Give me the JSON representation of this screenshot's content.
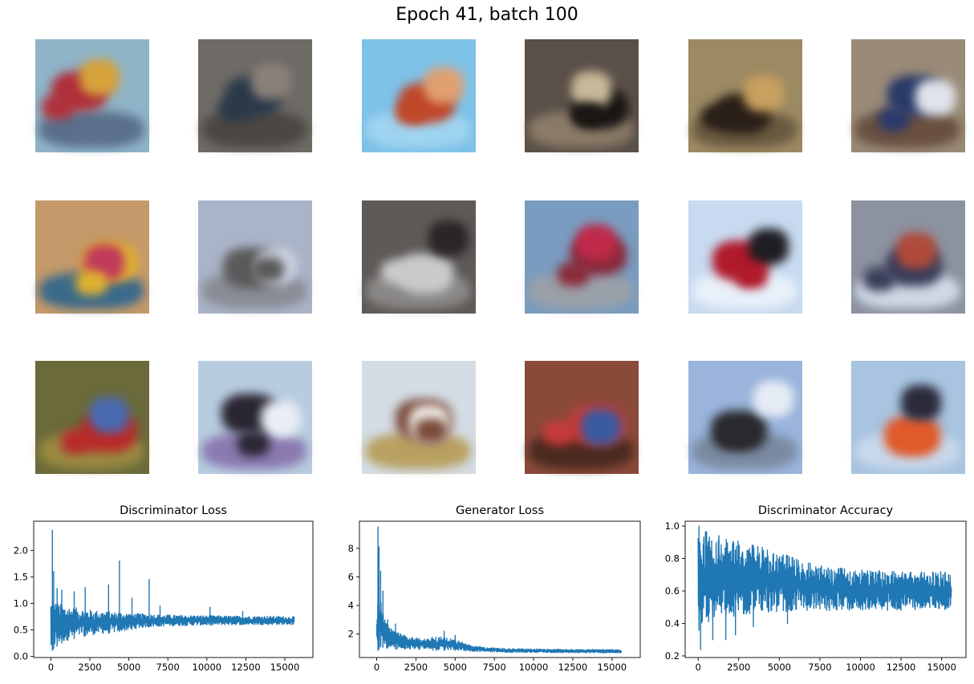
{
  "figure": {
    "title": "Epoch 41, batch 100"
  },
  "sample_grid": {
    "rows": 3,
    "cols": 6,
    "tiles": [
      {
        "bg": "#8fb4c8",
        "a": "#b0303a",
        "b": "#d6a23a",
        "c": "#5a6f8a"
      },
      {
        "bg": "#6e6a66",
        "a": "#2b3a4a",
        "b": "#8a8178",
        "c": "#4c4742"
      },
      {
        "bg": "#7ec2e8",
        "a": "#c0482a",
        "b": "#e0a070",
        "c": "#9fd4f0"
      },
      {
        "bg": "#5a5048",
        "a": "#1a1614",
        "b": "#c8b89a",
        "c": "#8a7a66"
      },
      {
        "bg": "#9c8a62",
        "a": "#2a2018",
        "b": "#c8a060",
        "c": "#6a5a40"
      },
      {
        "bg": "#9a8a78",
        "a": "#2a3a6a",
        "b": "#e0e4ea",
        "c": "#6a5040"
      },
      {
        "bg": "#c49a6a",
        "a": "#e0b030",
        "b": "#c03a5a",
        "c": "#3a6a8a"
      },
      {
        "bg": "#aab4c8",
        "a": "#5a5a5a",
        "b": "#cfd4e2",
        "c": "#8a8c96"
      },
      {
        "bg": "#5e5a58",
        "a": "#c8cacc",
        "b": "#2a2626",
        "c": "#8a8886"
      },
      {
        "bg": "#7a9cc0",
        "a": "#8a2a3a",
        "b": "#c02a4a",
        "c": "#9aa0a8"
      },
      {
        "bg": "#c8daf0",
        "a": "#b01a2a",
        "b": "#1e1e22",
        "c": "#e8f0fa"
      },
      {
        "bg": "#8c92a0",
        "a": "#3a3e5a",
        "b": "#b04a3a",
        "c": "#d0d8e4"
      },
      {
        "bg": "#6a6a3a",
        "a": "#b82a2a",
        "b": "#4a6ab0",
        "c": "#9a8a40"
      },
      {
        "bg": "#b8cce0",
        "a": "#2a2632",
        "b": "#e8eef4",
        "c": "#8a7ab0"
      },
      {
        "bg": "#d4dce4",
        "a": "#7a4a3a",
        "b": "#f0eee8",
        "c": "#b8a060"
      },
      {
        "bg": "#8a4a3a",
        "a": "#c83a3a",
        "b": "#3a5aa0",
        "c": "#4a2a20"
      },
      {
        "bg": "#9ab4dc",
        "a": "#2a2a2e",
        "b": "#e6ecf4",
        "c": "#7a8aa0"
      },
      {
        "bg": "#a8c4e0",
        "a": "#e05a2a",
        "b": "#2a2a3a",
        "c": "#c8d8ec"
      }
    ]
  },
  "chart_data": [
    {
      "type": "line",
      "title": "Discriminator Loss",
      "color": "#1f77b4",
      "xlim": [
        -1100,
        16800
      ],
      "ylim": [
        -0.02,
        2.55
      ],
      "xticks": [
        0,
        2500,
        5000,
        7500,
        10000,
        12500,
        15000
      ],
      "yticks": [
        0.0,
        0.5,
        1.0,
        1.5,
        2.0
      ],
      "ytick_labels": [
        "0.0",
        "0.5",
        "1.0",
        "1.5",
        "2.0"
      ],
      "envelope": {
        "x": [
          0,
          200,
          500,
          1000,
          2000,
          3000,
          4000,
          5000,
          6000,
          7000,
          8000,
          10000,
          12000,
          14000,
          15600
        ],
        "low": [
          0.08,
          0.15,
          0.22,
          0.3,
          0.38,
          0.42,
          0.45,
          0.5,
          0.55,
          0.57,
          0.58,
          0.59,
          0.6,
          0.6,
          0.6
        ],
        "high": [
          1.1,
          1.05,
          1.0,
          0.95,
          0.9,
          0.86,
          0.84,
          0.82,
          0.8,
          0.79,
          0.78,
          0.77,
          0.76,
          0.76,
          0.75
        ]
      },
      "spikes": [
        [
          100,
          2.38
        ],
        [
          180,
          1.6
        ],
        [
          400,
          1.28
        ],
        [
          700,
          1.25
        ],
        [
          1500,
          1.22
        ],
        [
          2200,
          1.3
        ],
        [
          3700,
          1.35
        ],
        [
          4400,
          1.8
        ],
        [
          5200,
          1.1
        ],
        [
          6300,
          1.45
        ],
        [
          7000,
          0.95
        ],
        [
          10200,
          0.93
        ],
        [
          12300,
          0.85
        ]
      ]
    },
    {
      "type": "line",
      "title": "Generator Loss",
      "color": "#1f77b4",
      "xlim": [
        -1100,
        16800
      ],
      "ylim": [
        0.35,
        9.9
      ],
      "xticks": [
        0,
        2500,
        5000,
        7500,
        10000,
        12500,
        15000
      ],
      "yticks": [
        2,
        4,
        6,
        8
      ],
      "ytick_labels": [
        "2",
        "4",
        "6",
        "8"
      ],
      "envelope": {
        "x": [
          0,
          100,
          250,
          500,
          800,
          1200,
          2000,
          3000,
          4000,
          5000,
          6000,
          7000,
          8000,
          10000,
          12000,
          14000,
          15600
        ],
        "low": [
          0.6,
          0.9,
          1.1,
          1.05,
          1.0,
          0.95,
          0.9,
          0.88,
          0.85,
          0.85,
          0.8,
          0.75,
          0.72,
          0.7,
          0.68,
          0.68,
          0.68
        ],
        "high": [
          3.0,
          6.0,
          4.5,
          3.0,
          2.5,
          2.2,
          1.8,
          1.7,
          1.8,
          1.6,
          1.2,
          1.05,
          1.0,
          0.95,
          0.92,
          0.92,
          0.92
        ]
      },
      "spikes": [
        [
          80,
          9.5
        ],
        [
          150,
          8.1
        ],
        [
          250,
          6.4
        ],
        [
          400,
          5.0
        ],
        [
          700,
          3.0
        ],
        [
          1200,
          2.7
        ],
        [
          4300,
          2.2
        ],
        [
          5000,
          1.9
        ]
      ]
    },
    {
      "type": "line",
      "title": "Discriminator Accuracy",
      "color": "#1f77b4",
      "xlim": [
        -800,
        16500
      ],
      "ylim": [
        0.19,
        1.03
      ],
      "xticks": [
        0,
        2500,
        5000,
        7500,
        10000,
        12500,
        15000
      ],
      "yticks": [
        0.2,
        0.4,
        0.6,
        0.8,
        1.0
      ],
      "ytick_labels": [
        "0.2",
        "0.4",
        "0.6",
        "0.8",
        "1.0"
      ],
      "envelope": {
        "x": [
          0,
          300,
          1000,
          2000,
          3000,
          4000,
          5000,
          6000,
          7000,
          8000,
          10000,
          12000,
          14000,
          15600
        ],
        "low": [
          0.35,
          0.4,
          0.42,
          0.44,
          0.45,
          0.46,
          0.47,
          0.48,
          0.48,
          0.48,
          0.48,
          0.48,
          0.48,
          0.48
        ],
        "high": [
          1.0,
          0.98,
          0.95,
          0.92,
          0.9,
          0.87,
          0.84,
          0.8,
          0.77,
          0.75,
          0.73,
          0.72,
          0.72,
          0.72
        ]
      },
      "spikes": [
        [
          50,
          1.0
        ],
        [
          150,
          0.24
        ],
        [
          900,
          0.3
        ],
        [
          1700,
          0.3
        ],
        [
          2300,
          0.33
        ],
        [
          3400,
          0.38
        ],
        [
          5500,
          0.4
        ]
      ]
    }
  ]
}
